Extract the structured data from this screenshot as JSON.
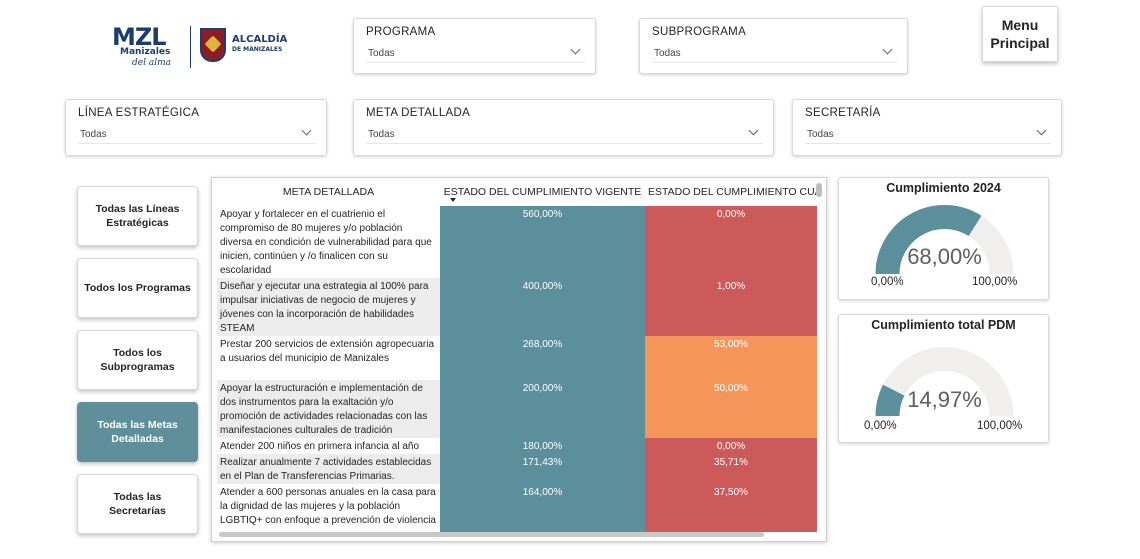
{
  "brand": {
    "logo_text": "MZL",
    "logo_sub": "Manizales",
    "logo_tagline": "del alma",
    "alcaldia": "ALCALDÍA",
    "alcaldia_sub": "DE MANIZALES"
  },
  "filters": {
    "programa": {
      "label": "PROGRAMA",
      "value": "Todas"
    },
    "subprograma": {
      "label": "SUBPROGRAMA",
      "value": "Todas"
    },
    "linea": {
      "label": "LÍNEA ESTRATÉGICA",
      "value": "Todas"
    },
    "meta": {
      "label": "META DETALLADA",
      "value": "Todas"
    },
    "secretaria": {
      "label": "SECRETARÍA",
      "value": "Todas"
    }
  },
  "menu_button": {
    "line1": "Menu",
    "line2": "Principal"
  },
  "nav": {
    "lineas": "Todas las Líneas Estratégicas",
    "programas": "Todos los Programas",
    "subprogramas": "Todos los Subprogramas",
    "metas": "Todas las Metas Detalladas",
    "secretarias": "Todas las Secretarías"
  },
  "table": {
    "headers": [
      "META DETALLADA",
      "ESTADO DEL CUMPLIMIENTO VIGENTE",
      "ESTADO DEL CUMPLIMIENTO CUATRIENIO"
    ],
    "rows": [
      {
        "meta": "Apoyar y fortalecer en el cuatrienio el compromiso de 80 mujeres y/o población diversa en condición de vulnerabilidad para que inicien, continúen y /o finalicen con su escolaridad",
        "vigente": "560,00%",
        "cuatrienio": "0,00%",
        "color": "#cd5a5a"
      },
      {
        "meta": "Diseñar y ejecutar una estrategia al 100% para impulsar iniciativas de negocio de mujeres y jóvenes con la incorporación de habilidades STEAM",
        "vigente": "400,00%",
        "cuatrienio": "1,00%",
        "color": "#cd5a5a"
      },
      {
        "meta": "Prestar 200 servicios de extensión agropecuaria a usuarios del municipio de Manizales",
        "vigente": "268,00%",
        "cuatrienio": "53,00%",
        "color": "#f5955a"
      },
      {
        "meta": "Apoyar la estructuración e implementación de dos instrumentos para la exaltación y/o promoción de actividades relacionadas con las manifestaciones culturales de tradición",
        "vigente": "200,00%",
        "cuatrienio": "50,00%",
        "color": "#f5955a"
      },
      {
        "meta": "Atender 200 niños en primera infancia al año",
        "vigente": "180,00%",
        "cuatrienio": "0,00%",
        "color": "#cd5a5a"
      },
      {
        "meta": "Realizar anualmente 7 actividades establecidas en el Plan de Transferencias Primarias.",
        "vigente": "171,43%",
        "cuatrienio": "35,71%",
        "color": "#cd5a5a"
      },
      {
        "meta": "Atender a 600 personas anuales en la casa para la dignidad de las mujeres y la población LGBTIQ+ con enfoque a prevención de violencia",
        "vigente": "164,00%",
        "cuatrienio": "37,50%",
        "color": "#cd5a5a"
      }
    ]
  },
  "gauges": [
    {
      "title": "Cumplimiento 2024",
      "value_label": "68,00%",
      "fraction": 0.68,
      "min": "0,00%",
      "max": "100,00%",
      "fill": "#5b8f9b",
      "track": "#f0efee"
    },
    {
      "title": "Cumplimiento total PDM",
      "value_label": "14,97%",
      "fraction": 0.1497,
      "min": "0,00%",
      "max": "100,00%",
      "fill": "#5b8f9b",
      "track": "#f0efee"
    }
  ]
}
